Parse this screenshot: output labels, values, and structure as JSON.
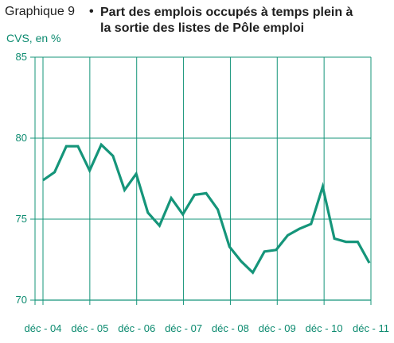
{
  "header": {
    "prefix": "Graphique 9",
    "bullet": "•",
    "title_line1": "Part des emplois occupés à temps plein à",
    "title_line2": "la sortie des listes de Pôle emploi"
  },
  "unit_label": "CVS, en %",
  "chart_data": {
    "type": "line",
    "title": "Part des emplois occupés à temps plein à la sortie des listes de Pôle emploi",
    "ylabel": "CVS, en %",
    "ylim": [
      70,
      85
    ],
    "yticks": [
      "70",
      "75",
      "80",
      "85"
    ],
    "xticks": [
      "déc - 04",
      "déc - 05",
      "déc - 06",
      "déc - 07",
      "déc - 08",
      "déc - 09",
      "déc - 10",
      "déc - 11"
    ],
    "grid": true,
    "color": "#15957a",
    "series": [
      {
        "values": [
          77.4,
          77.9,
          79.5,
          79.5,
          78.0,
          79.6,
          78.9,
          76.8,
          77.8,
          75.4,
          74.6,
          76.3,
          75.3,
          76.5,
          76.6,
          75.6,
          73.3,
          72.4,
          71.7,
          73.0,
          73.1,
          74.0,
          74.4,
          74.7,
          77.0,
          73.8,
          73.6,
          73.6,
          72.3
        ]
      }
    ]
  }
}
